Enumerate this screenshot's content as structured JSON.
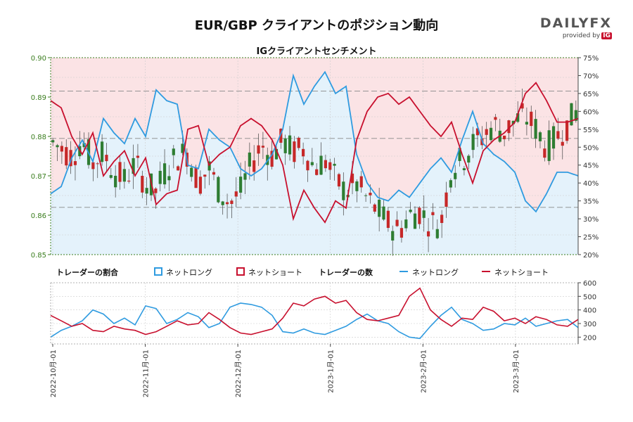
{
  "title": "EUR/GBP クライアントのポジション動向",
  "logo": {
    "brand": "DAILYFX",
    "provided_by": "provided by",
    "ig": "IG"
  },
  "legend": {
    "ratio_label": "トレーダーの割合",
    "ratio_long": "ネットロング",
    "ratio_short": "ネットショート",
    "count_label": "トレーダーの数",
    "count_long": "ネットロング",
    "count_short": "ネットショート"
  },
  "colors": {
    "long": "#2f9be0",
    "short": "#c8102e",
    "long_fill": "#e4f2fb",
    "short_fill": "#fbe3e5",
    "candle_up": "#2e7d32",
    "candle_down": "#c62828",
    "axis_left": "#3a7d1e"
  },
  "chart_data": [
    {
      "type": "candlestick",
      "title": "IGクライアントセンチメント",
      "ylim": [
        0.85,
        0.9
      ],
      "y_ticks": [
        "0.85",
        "0.86",
        "0.87",
        "0.88",
        "0.89",
        "0.90"
      ],
      "y2lim": [
        20,
        75
      ],
      "y2_ticks": [
        "20%",
        "25%",
        "30%",
        "35%",
        "40%",
        "45%",
        "50%",
        "55%",
        "60%",
        "65%",
        "70%",
        "75%"
      ],
      "reference_lines": [
        0.862,
        0.8795,
        0.8915
      ],
      "price_path": [
        [
          0.0,
          0.879
        ],
        [
          0.02,
          0.877
        ],
        [
          0.04,
          0.875
        ],
        [
          0.06,
          0.879
        ],
        [
          0.08,
          0.873
        ],
        [
          0.1,
          0.876
        ],
        [
          0.12,
          0.871
        ],
        [
          0.14,
          0.869
        ],
        [
          0.16,
          0.873
        ],
        [
          0.18,
          0.868
        ],
        [
          0.2,
          0.866
        ],
        [
          0.22,
          0.872
        ],
        [
          0.24,
          0.875
        ],
        [
          0.26,
          0.876
        ],
        [
          0.28,
          0.868
        ],
        [
          0.3,
          0.872
        ],
        [
          0.32,
          0.866
        ],
        [
          0.34,
          0.863
        ],
        [
          0.36,
          0.866
        ],
        [
          0.38,
          0.873
        ],
        [
          0.4,
          0.878
        ],
        [
          0.42,
          0.875
        ],
        [
          0.44,
          0.879
        ],
        [
          0.46,
          0.876
        ],
        [
          0.48,
          0.877
        ],
        [
          0.5,
          0.872
        ],
        [
          0.52,
          0.874
        ],
        [
          0.54,
          0.869
        ],
        [
          0.56,
          0.866
        ],
        [
          0.58,
          0.868
        ],
        [
          0.6,
          0.864
        ],
        [
          0.62,
          0.861
        ],
        [
          0.64,
          0.858
        ],
        [
          0.66,
          0.856
        ],
        [
          0.68,
          0.86
        ],
        [
          0.7,
          0.861
        ],
        [
          0.72,
          0.858
        ],
        [
          0.74,
          0.858
        ],
        [
          0.76,
          0.872
        ],
        [
          0.78,
          0.874
        ],
        [
          0.8,
          0.878
        ],
        [
          0.82,
          0.88
        ],
        [
          0.84,
          0.883
        ],
        [
          0.86,
          0.881
        ],
        [
          0.88,
          0.884
        ],
        [
          0.9,
          0.885
        ],
        [
          0.92,
          0.882
        ],
        [
          0.94,
          0.877
        ],
        [
          0.96,
          0.88
        ],
        [
          0.98,
          0.883
        ],
        [
          1.0,
          0.887
        ]
      ],
      "long_pct_path": [
        [
          0.0,
          37
        ],
        [
          0.02,
          39
        ],
        [
          0.04,
          47
        ],
        [
          0.06,
          52
        ],
        [
          0.08,
          46
        ],
        [
          0.1,
          58
        ],
        [
          0.12,
          54
        ],
        [
          0.14,
          51
        ],
        [
          0.16,
          58
        ],
        [
          0.18,
          53
        ],
        [
          0.2,
          66
        ],
        [
          0.22,
          63
        ],
        [
          0.24,
          62
        ],
        [
          0.26,
          45
        ],
        [
          0.28,
          44
        ],
        [
          0.3,
          55
        ],
        [
          0.32,
          52
        ],
        [
          0.34,
          50
        ],
        [
          0.36,
          44
        ],
        [
          0.38,
          42
        ],
        [
          0.4,
          44
        ],
        [
          0.42,
          48
        ],
        [
          0.44,
          55
        ],
        [
          0.46,
          70
        ],
        [
          0.48,
          62
        ],
        [
          0.5,
          67
        ],
        [
          0.52,
          71
        ],
        [
          0.54,
          65
        ],
        [
          0.56,
          67
        ],
        [
          0.58,
          48
        ],
        [
          0.6,
          40
        ],
        [
          0.62,
          36
        ],
        [
          0.64,
          35
        ],
        [
          0.66,
          38
        ],
        [
          0.68,
          36
        ],
        [
          0.7,
          40
        ],
        [
          0.72,
          44
        ],
        [
          0.74,
          47
        ],
        [
          0.76,
          43
        ],
        [
          0.78,
          52
        ],
        [
          0.8,
          60
        ],
        [
          0.82,
          51
        ],
        [
          0.84,
          48
        ],
        [
          0.86,
          46
        ],
        [
          0.88,
          43
        ],
        [
          0.9,
          35
        ],
        [
          0.92,
          32
        ],
        [
          0.94,
          37
        ],
        [
          0.96,
          43
        ],
        [
          0.98,
          43
        ],
        [
          1.0,
          42
        ]
      ]
    },
    {
      "type": "line",
      "title": "",
      "ylim": [
        150,
        600
      ],
      "y_ticks": [
        "200",
        "300",
        "400",
        "500",
        "600"
      ],
      "x_ticks": [
        "2022-10月-01",
        "2022-11月-01",
        "2022-12月-01",
        "2023-1月-01",
        "2023-2月-01",
        "2023-3月-01"
      ],
      "series": [
        {
          "name": "ネットロング",
          "values": [
            200,
            250,
            280,
            320,
            400,
            370,
            300,
            340,
            290,
            430,
            410,
            300,
            330,
            380,
            350,
            270,
            300,
            420,
            450,
            440,
            420,
            360,
            240,
            230,
            260,
            230,
            220,
            250,
            280,
            330,
            370,
            320,
            300,
            240,
            200,
            190,
            280,
            360,
            420,
            330,
            300,
            250,
            260,
            300,
            290,
            340,
            280,
            300,
            320,
            330,
            270
          ]
        },
        {
          "name": "ネットショート",
          "values": [
            360,
            320,
            280,
            300,
            250,
            240,
            280,
            260,
            250,
            220,
            240,
            280,
            320,
            290,
            300,
            380,
            330,
            270,
            230,
            220,
            240,
            260,
            340,
            450,
            430,
            480,
            500,
            450,
            470,
            380,
            330,
            320,
            340,
            360,
            500,
            560,
            400,
            330,
            280,
            340,
            330,
            420,
            390,
            320,
            340,
            300,
            350,
            330,
            290,
            280,
            330
          ]
        }
      ]
    }
  ]
}
